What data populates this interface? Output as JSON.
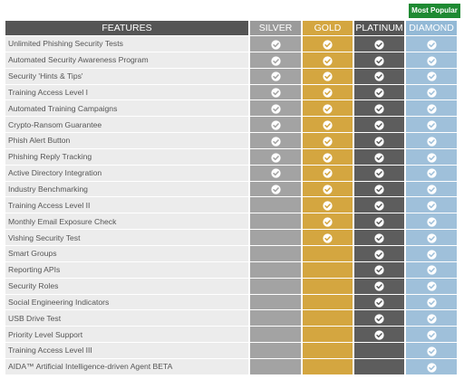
{
  "badge": "Most Popular",
  "headers": {
    "features": "FEATURES",
    "silver": "SILVER",
    "gold": "GOLD",
    "platinum": "PLATINUM",
    "diamond": "DIAMOND"
  },
  "icon": "check-circle-icon",
  "colors": {
    "silver": "#a3a3a3",
    "gold": "#d4a640",
    "platinum": "#5d5d5d",
    "diamond": "#9fc0da",
    "badge": "#1e8a32"
  },
  "rows": [
    {
      "feature": "Unlimited Phishing Security Tests",
      "silver": true,
      "gold": true,
      "platinum": true,
      "diamond": true
    },
    {
      "feature": "Automated Security Awareness Program",
      "silver": true,
      "gold": true,
      "platinum": true,
      "diamond": true
    },
    {
      "feature": "Security 'Hints & Tips'",
      "silver": true,
      "gold": true,
      "platinum": true,
      "diamond": true
    },
    {
      "feature": "Training Access Level I",
      "silver": true,
      "gold": true,
      "platinum": true,
      "diamond": true
    },
    {
      "feature": "Automated Training Campaigns",
      "silver": true,
      "gold": true,
      "platinum": true,
      "diamond": true
    },
    {
      "feature": "Crypto-Ransom Guarantee",
      "silver": true,
      "gold": true,
      "platinum": true,
      "diamond": true
    },
    {
      "feature": "Phish Alert Button",
      "silver": true,
      "gold": true,
      "platinum": true,
      "diamond": true
    },
    {
      "feature": "Phishing Reply Tracking",
      "silver": true,
      "gold": true,
      "platinum": true,
      "diamond": true
    },
    {
      "feature": "Active Directory Integration",
      "silver": true,
      "gold": true,
      "platinum": true,
      "diamond": true
    },
    {
      "feature": "Industry Benchmarking",
      "silver": true,
      "gold": true,
      "platinum": true,
      "diamond": true
    },
    {
      "feature": "Training Access Level II",
      "silver": false,
      "gold": true,
      "platinum": true,
      "diamond": true
    },
    {
      "feature": "Monthly Email Exposure Check",
      "silver": false,
      "gold": true,
      "platinum": true,
      "diamond": true
    },
    {
      "feature": "Vishing Security Test",
      "silver": false,
      "gold": true,
      "platinum": true,
      "diamond": true
    },
    {
      "feature": "Smart Groups",
      "silver": false,
      "gold": false,
      "platinum": true,
      "diamond": true
    },
    {
      "feature": "Reporting APIs",
      "silver": false,
      "gold": false,
      "platinum": true,
      "diamond": true
    },
    {
      "feature": "Security Roles",
      "silver": false,
      "gold": false,
      "platinum": true,
      "diamond": true
    },
    {
      "feature": "Social Engineering Indicators",
      "silver": false,
      "gold": false,
      "platinum": true,
      "diamond": true
    },
    {
      "feature": "USB Drive Test",
      "silver": false,
      "gold": false,
      "platinum": true,
      "diamond": true
    },
    {
      "feature": "Priority Level Support",
      "silver": false,
      "gold": false,
      "platinum": true,
      "diamond": true
    },
    {
      "feature": "Training Access Level III",
      "silver": false,
      "gold": false,
      "platinum": false,
      "diamond": true
    },
    {
      "feature": "AIDA™ Artificial Intelligence-driven Agent BETA",
      "silver": false,
      "gold": false,
      "platinum": false,
      "diamond": true
    }
  ]
}
